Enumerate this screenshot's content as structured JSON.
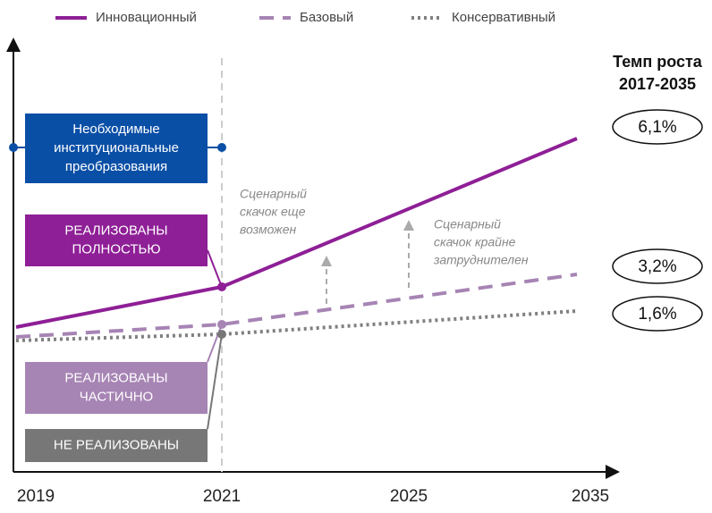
{
  "chart_data": {
    "type": "line",
    "x": [
      "2019",
      "2021",
      "2025",
      "2035"
    ],
    "series": [
      {
        "name": "Инновационный",
        "color": "#8e1f96",
        "dash": "solid"
      },
      {
        "name": "Базовый",
        "color": "#a684b4",
        "dash": "dashed"
      },
      {
        "name": "Консервативный",
        "color": "#808080",
        "dash": "dotted"
      }
    ],
    "boxes": [
      {
        "lines": [
          "Необходимые",
          "институциональные",
          "преобразования"
        ],
        "color": "#0a4fa6"
      },
      {
        "lines": [
          "РЕАЛИЗОВАНЫ",
          "ПОЛНОСТЬЮ"
        ],
        "color": "#8e1f96"
      },
      {
        "lines": [
          "РЕАЛИЗОВАНЫ",
          "ЧАСТИЧНО"
        ],
        "color": "#a684b4"
      },
      {
        "lines": [
          "НЕ РЕАЛИЗОВАНЫ"
        ],
        "color": "#777777"
      }
    ],
    "annotations": [
      [
        "Сценарный",
        "скачок еще",
        "возможен"
      ],
      [
        "Сценарный",
        "скачок крайне",
        "затруднителен"
      ]
    ],
    "growth_title": [
      "Темп роста",
      "2017-2035"
    ],
    "growth_labels": [
      "6,1%",
      "3,2%",
      "1,6%"
    ]
  }
}
